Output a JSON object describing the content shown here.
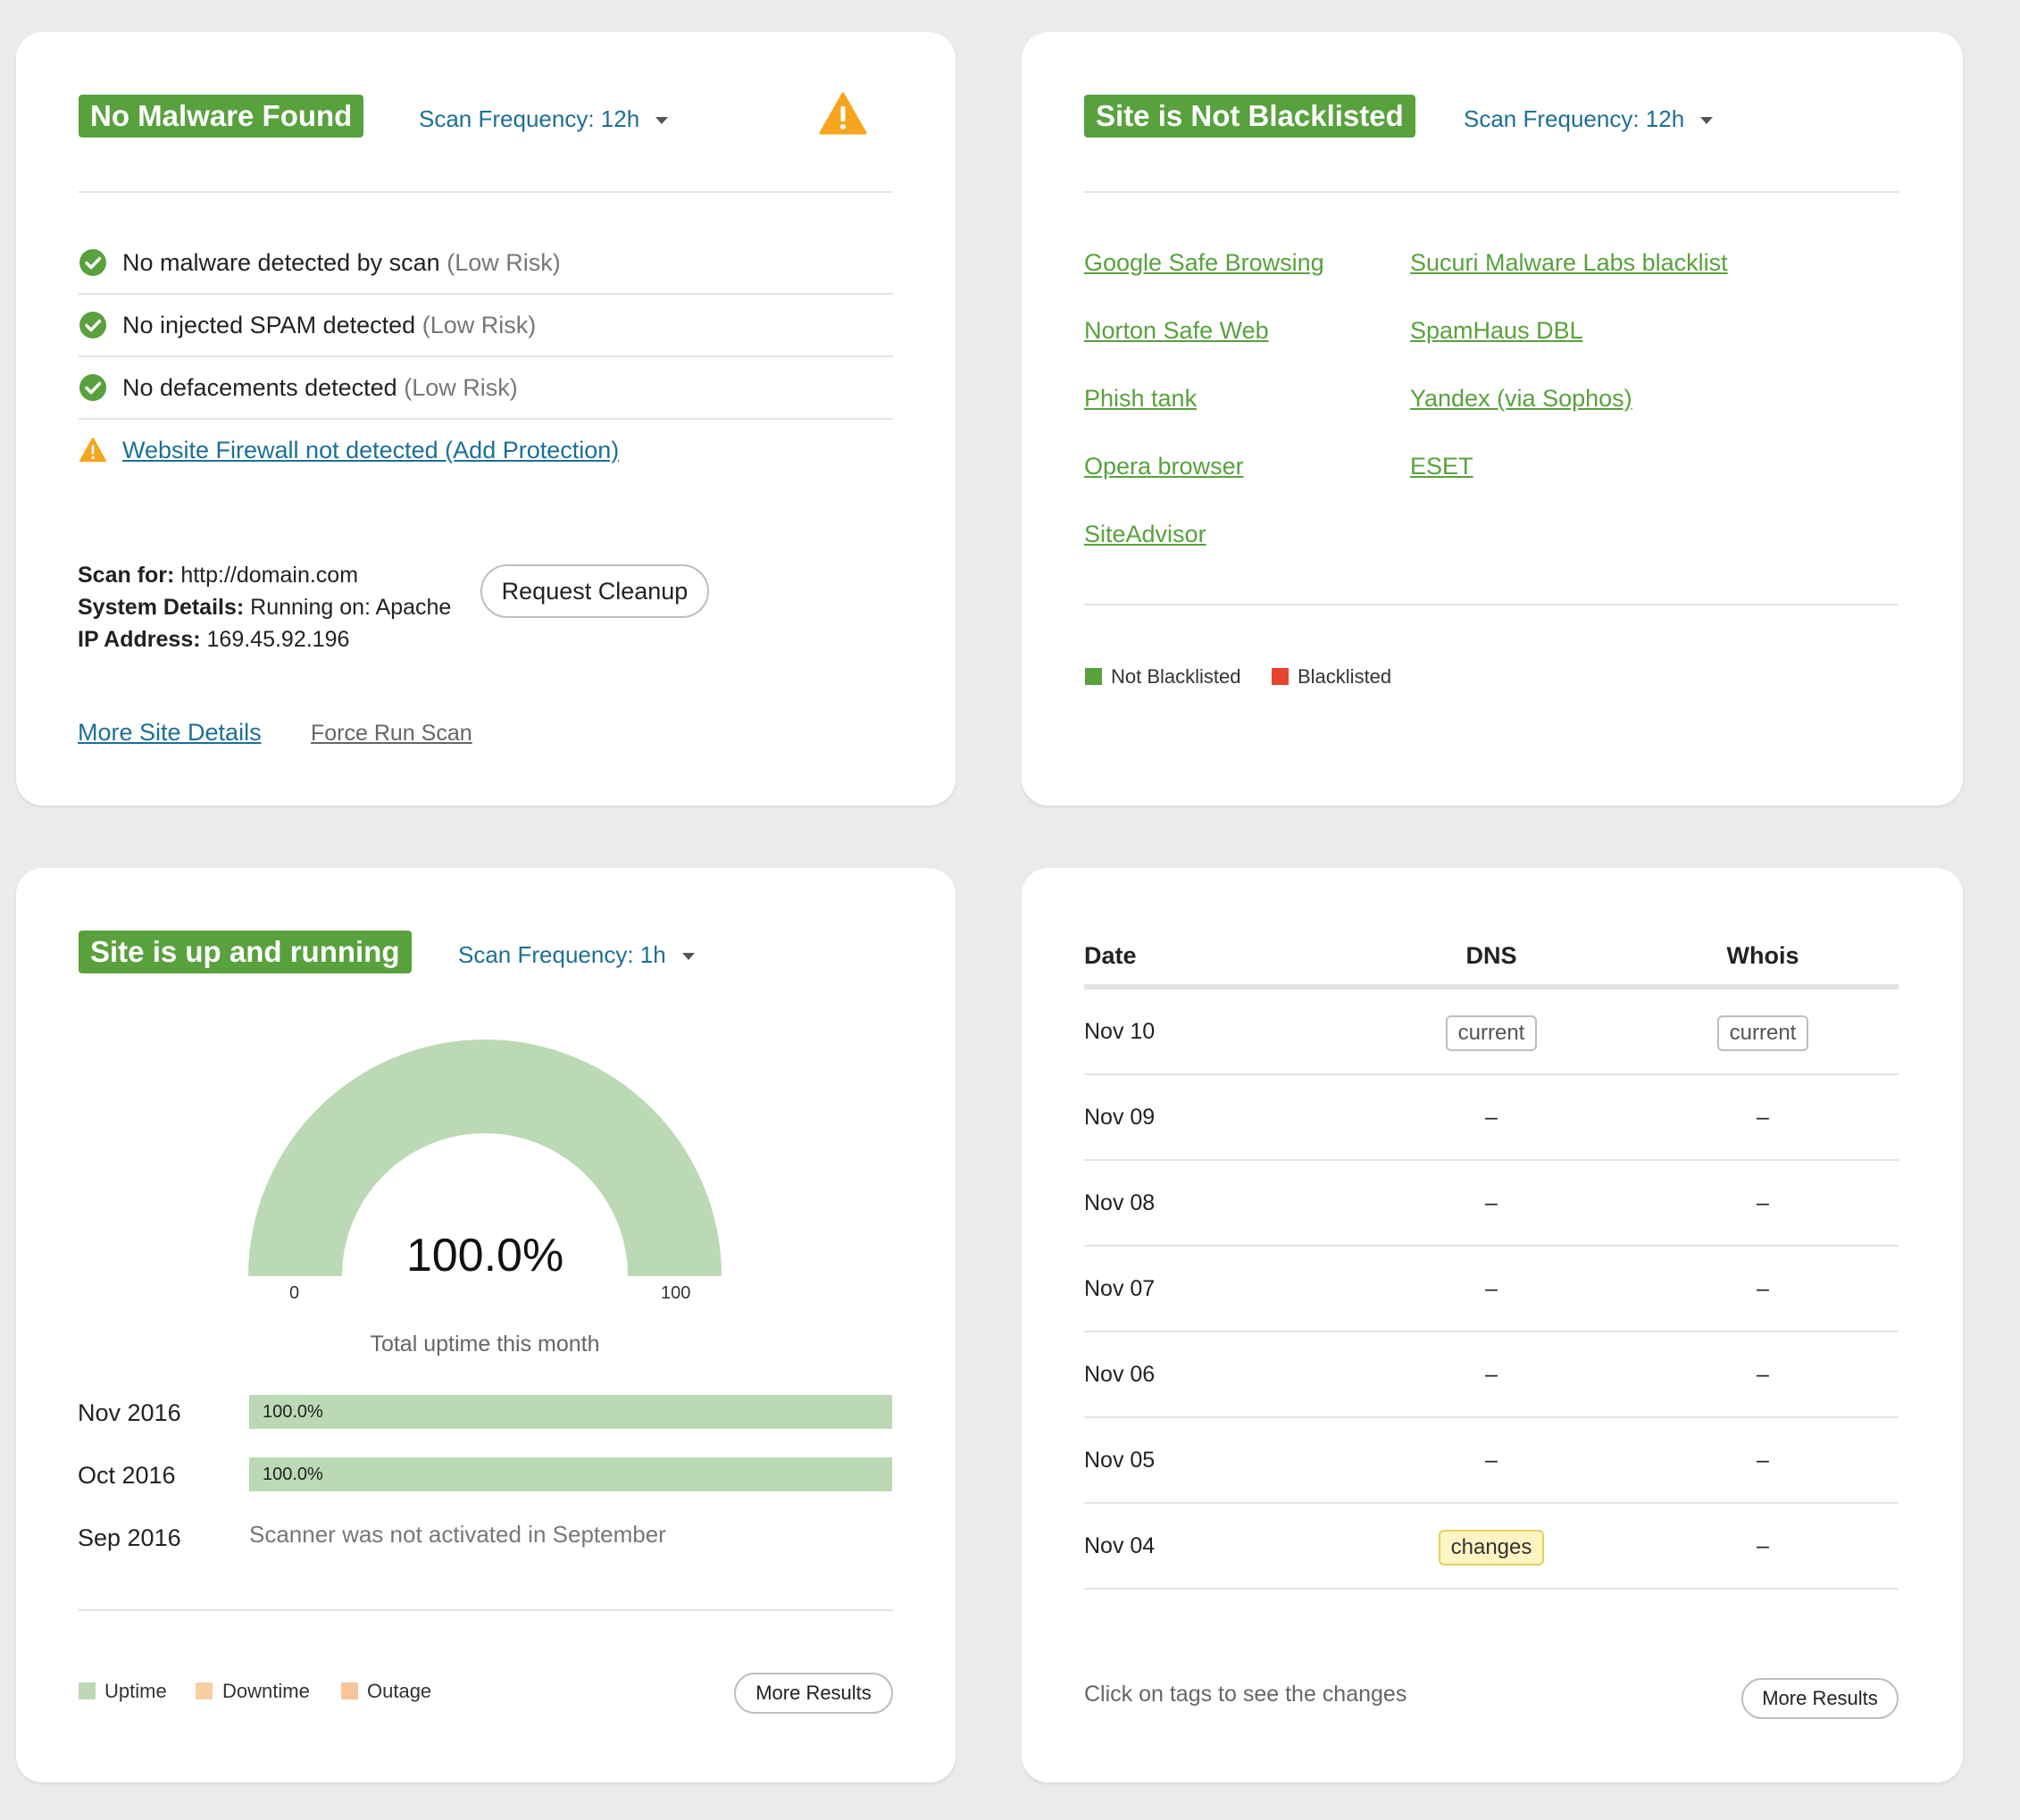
{
  "malware": {
    "badge": "No Malware Found",
    "scan_frequency": "Scan Frequency: 12h",
    "checks": [
      {
        "text": "No malware detected by scan",
        "risk": "(Low Risk)"
      },
      {
        "text": "No injected SPAM detected",
        "risk": "(Low Risk)"
      },
      {
        "text": "No defacements detected",
        "risk": "(Low Risk)"
      }
    ],
    "firewall_link": "Website Firewall not detected (Add Protection)",
    "scan_for_label": "Scan for:",
    "scan_for_value": "http://domain.com",
    "system_label": "System Details:",
    "system_value": "Running on: Apache",
    "ip_label": "IP Address:",
    "ip_value": "169.45.92.196",
    "request_cleanup": "Request Cleanup",
    "more_site_details": "More Site Details",
    "force_run_scan": "Force Run Scan"
  },
  "blacklist": {
    "badge": "Site is Not Blacklisted",
    "scan_frequency": "Scan Frequency: 12h",
    "col1": [
      "Google Safe Browsing",
      "Norton Safe Web",
      "Phish tank",
      "Opera browser",
      "SiteAdvisor"
    ],
    "col2": [
      "Sucuri Malware Labs blacklist",
      "SpamHaus DBL",
      "Yandex (via Sophos)",
      "ESET"
    ],
    "legend": {
      "not_blacklisted": "Not Blacklisted",
      "blacklisted": "Blacklisted"
    },
    "colors": {
      "not_blacklisted": "#58a13d",
      "blacklisted": "#e8452c"
    }
  },
  "uptime": {
    "badge": "Site is up and running",
    "scan_frequency": "Scan Frequency: 1h",
    "gauge": {
      "value": 100.0,
      "display": "100.0%",
      "min": "0",
      "max": "100"
    },
    "caption": "Total uptime this month",
    "months": [
      {
        "label": "Nov 2016",
        "bar": "100.0%",
        "value": 100.0
      },
      {
        "label": "Oct 2016",
        "bar": "100.0%",
        "value": 100.0
      },
      {
        "label": "Sep 2016",
        "note": "Scanner was not activated in September"
      }
    ],
    "legend": {
      "uptime": "Uptime",
      "downtime": "Downtime",
      "outage": "Outage"
    },
    "colors": {
      "uptime": "#bcd9b5",
      "downtime": "#f9cfa0",
      "outage": "#f9c49a"
    },
    "more_results": "More Results"
  },
  "dns": {
    "headers": {
      "date": "Date",
      "dns": "DNS",
      "whois": "Whois"
    },
    "rows": [
      {
        "date": "Nov 10",
        "dns": "current",
        "whois": "current"
      },
      {
        "date": "Nov 09",
        "dns": "–",
        "whois": "–"
      },
      {
        "date": "Nov 08",
        "dns": "–",
        "whois": "–"
      },
      {
        "date": "Nov 07",
        "dns": "–",
        "whois": "–"
      },
      {
        "date": "Nov 06",
        "dns": "–",
        "whois": "–"
      },
      {
        "date": "Nov 05",
        "dns": "–",
        "whois": "–"
      },
      {
        "date": "Nov 04",
        "dns": "changes",
        "whois": "–"
      }
    ],
    "hint": "Click on tags to see the changes",
    "more_results": "More Results"
  }
}
